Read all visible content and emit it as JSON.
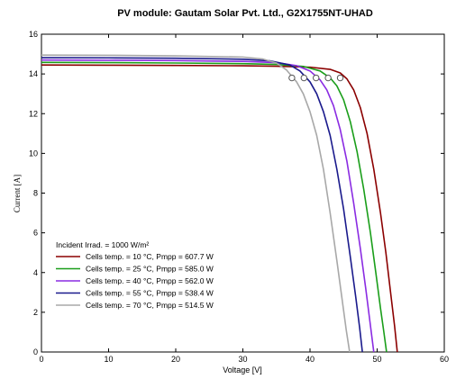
{
  "chart_data": {
    "type": "line",
    "title": "PV module:  Gautam Solar Pvt. Ltd., G2X1755NT-UHAD",
    "xlabel": "Voltage [V]",
    "ylabel": "Current [A]",
    "xlim": [
      0,
      60
    ],
    "ylim": [
      0,
      16
    ],
    "xticks": [
      0,
      10,
      20,
      30,
      40,
      50,
      60
    ],
    "yticks": [
      0,
      2,
      4,
      6,
      8,
      10,
      12,
      14,
      16
    ],
    "grid": false,
    "legend_position": "bottom-left",
    "annotation": "Incident Irrad. = 1000 W/m²",
    "series": [
      {
        "name": "Cells temp. = 10 °C,  Pmpp = 607.7 W",
        "color": "#8b0000",
        "points": [
          [
            0,
            14.45
          ],
          [
            10,
            14.44
          ],
          [
            20,
            14.43
          ],
          [
            30,
            14.41
          ],
          [
            35,
            14.39
          ],
          [
            40,
            14.34
          ],
          [
            43,
            14.23
          ],
          [
            44.5,
            14.05
          ],
          [
            45.5,
            13.75
          ],
          [
            46.5,
            13.2
          ],
          [
            47.5,
            12.3
          ],
          [
            48.5,
            11.0
          ],
          [
            49.5,
            9.2
          ],
          [
            50.5,
            7.0
          ],
          [
            51.3,
            5.0
          ],
          [
            52.0,
            3.0
          ],
          [
            52.6,
            1.3
          ],
          [
            53.0,
            0
          ]
        ],
        "mpp": [
          44.5,
          13.8
        ]
      },
      {
        "name": "Cells temp. = 25 °C,  Pmpp = 585.0 W",
        "color": "#1a9e1a",
        "points": [
          [
            0,
            14.58
          ],
          [
            10,
            14.57
          ],
          [
            20,
            14.55
          ],
          [
            30,
            14.52
          ],
          [
            35,
            14.48
          ],
          [
            39,
            14.38
          ],
          [
            41.5,
            14.15
          ],
          [
            43,
            13.8
          ],
          [
            44,
            13.4
          ],
          [
            45,
            12.7
          ],
          [
            46,
            11.6
          ],
          [
            47,
            10.1
          ],
          [
            48,
            8.2
          ],
          [
            49,
            6.0
          ],
          [
            49.8,
            4.0
          ],
          [
            50.5,
            2.2
          ],
          [
            51.0,
            1.0
          ],
          [
            51.4,
            0
          ]
        ],
        "mpp": [
          42.7,
          13.8
        ]
      },
      {
        "name": "Cells temp. = 40 °C,  Pmpp = 562.0 W",
        "color": "#8a2be2",
        "points": [
          [
            0,
            14.7
          ],
          [
            10,
            14.69
          ],
          [
            20,
            14.67
          ],
          [
            30,
            14.63
          ],
          [
            35,
            14.57
          ],
          [
            38,
            14.42
          ],
          [
            40,
            14.15
          ],
          [
            41.5,
            13.7
          ],
          [
            42.5,
            13.2
          ],
          [
            43.5,
            12.4
          ],
          [
            44.5,
            11.2
          ],
          [
            45.5,
            9.6
          ],
          [
            46.5,
            7.5
          ],
          [
            47.5,
            5.2
          ],
          [
            48.3,
            3.2
          ],
          [
            48.9,
            1.6
          ],
          [
            49.5,
            0
          ]
        ],
        "mpp": [
          40.9,
          13.8
        ]
      },
      {
        "name": "Cells temp. = 55 °C,  Pmpp = 538.4 W",
        "color": "#1a1a8c",
        "points": [
          [
            0,
            14.82
          ],
          [
            10,
            14.81
          ],
          [
            20,
            14.79
          ],
          [
            30,
            14.74
          ],
          [
            34,
            14.66
          ],
          [
            37,
            14.45
          ],
          [
            38.5,
            14.15
          ],
          [
            40,
            13.6
          ],
          [
            41,
            13.0
          ],
          [
            42,
            12.1
          ],
          [
            43,
            10.9
          ],
          [
            44,
            9.2
          ],
          [
            45,
            7.2
          ],
          [
            46,
            4.8
          ],
          [
            46.8,
            2.8
          ],
          [
            47.4,
            1.2
          ],
          [
            47.8,
            0
          ]
        ],
        "mpp": [
          39.1,
          13.8
        ]
      },
      {
        "name": "Cells temp. = 70 °C,  Pmpp = 514.5 W",
        "color": "#a8a8a8",
        "points": [
          [
            0,
            14.95
          ],
          [
            10,
            14.94
          ],
          [
            20,
            14.91
          ],
          [
            30,
            14.85
          ],
          [
            33,
            14.75
          ],
          [
            35,
            14.55
          ],
          [
            36.5,
            14.2
          ],
          [
            38,
            13.6
          ],
          [
            39,
            13.0
          ],
          [
            40,
            12.1
          ],
          [
            41,
            10.9
          ],
          [
            42,
            9.2
          ],
          [
            43,
            7.0
          ],
          [
            44,
            4.6
          ],
          [
            44.8,
            2.6
          ],
          [
            45.4,
            1.1
          ],
          [
            45.9,
            0
          ]
        ],
        "mpp": [
          37.3,
          13.8
        ]
      }
    ]
  }
}
